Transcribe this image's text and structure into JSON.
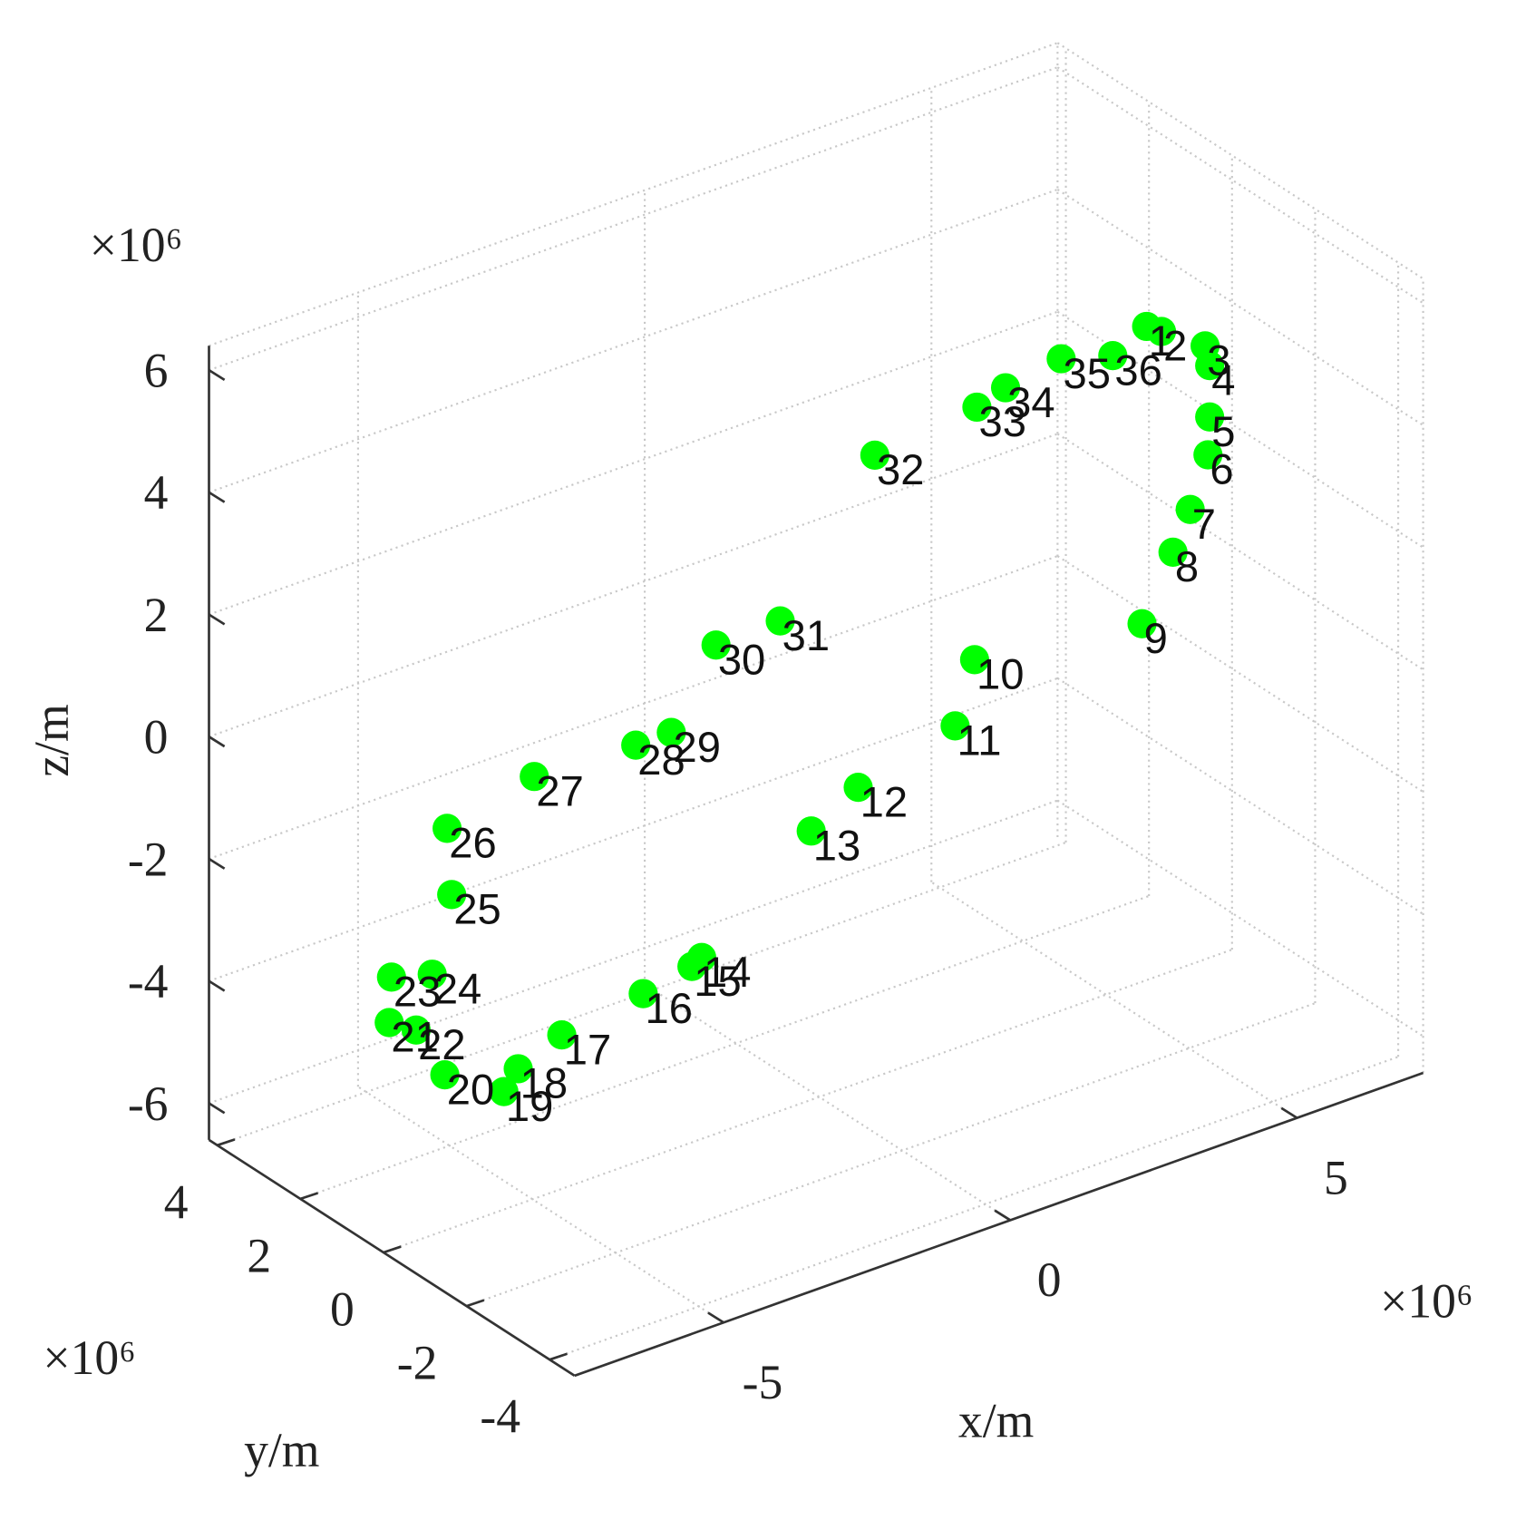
{
  "chart_data": {
    "type": "scatter3d",
    "xlabel": "x/m",
    "ylabel": "y/m",
    "zlabel": "z/m",
    "x_exponent": "×10⁶",
    "y_exponent": "×10⁶",
    "z_exponent": "×10⁶",
    "color": "#00ff00",
    "grid": true,
    "xlim": [
      -7.6,
      7.2
    ],
    "ylim": [
      -4.6,
      4.2
    ],
    "zlim": [
      -6.6,
      6.4
    ],
    "xticks": [
      -5,
      0,
      5
    ],
    "yticks": [
      -4,
      -2,
      0,
      2,
      4
    ],
    "zticks": [
      -6,
      -4,
      -2,
      0,
      2,
      4,
      6
    ],
    "labels": [
      "1",
      "2",
      "3",
      "4",
      "5",
      "6",
      "7",
      "8",
      "9",
      "10",
      "11",
      "12",
      "13",
      "14",
      "15",
      "16",
      "17",
      "18",
      "19",
      "20",
      "21",
      "22",
      "23",
      "24",
      "25",
      "26",
      "27",
      "28",
      "29",
      "30",
      "31",
      "32",
      "33",
      "34",
      "35",
      "36"
    ],
    "x": [
      5.71,
      5.97,
      6.73,
      6.81,
      6.81,
      6.78,
      6.47,
      6.17,
      5.63,
      2.71,
      2.37,
      0.68,
      -0.14,
      -2.05,
      -2.22,
      -3.07,
      -4.49,
      -5.25,
      -5.5,
      -6.53,
      -7.5,
      -7.03,
      -7.46,
      -6.75,
      -6.41,
      -6.49,
      -4.97,
      -3.2,
      -2.58,
      -1.8,
      -0.68,
      0.97,
      2.75,
      3.25,
      4.22,
      5.12
    ],
    "y": [
      0,
      0,
      0,
      0,
      0,
      0,
      0,
      0,
      0,
      0,
      0,
      0,
      0,
      0,
      0,
      0,
      0,
      0,
      0,
      0,
      0,
      0,
      0,
      0,
      0,
      0,
      0,
      0,
      0,
      0,
      0,
      0,
      0,
      0,
      0,
      0
    ],
    "z": [
      4.1,
      3.93,
      3.44,
      3.09,
      2.25,
      1.64,
      0.85,
      0.25,
      -0.74,
      -0.35,
      -1.32,
      -1.76,
      -2.2,
      -3.63,
      -3.72,
      -3.88,
      -4.08,
      -4.38,
      -4.67,
      -4.05,
      -2.87,
      -3.15,
      -2.14,
      -2.33,
      -1.14,
      -0.03,
      0.31,
      0.23,
      0.23,
      1.4,
      1.42,
      3.58,
      3.77,
      3.92,
      4.07,
      3.82
    ]
  }
}
